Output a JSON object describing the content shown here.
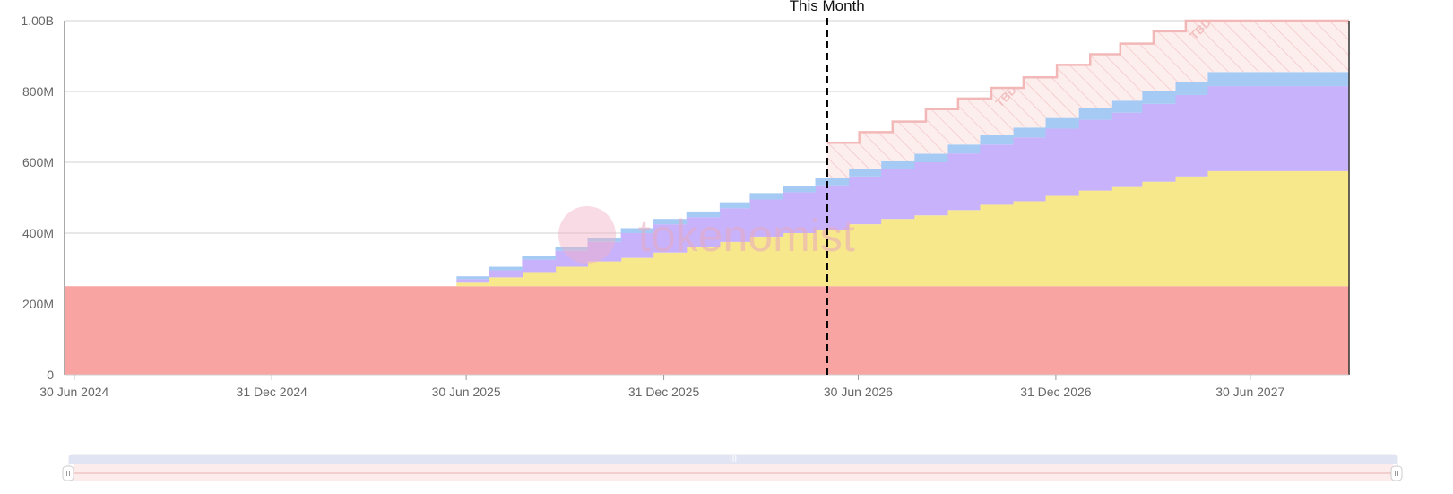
{
  "chart_data": {
    "type": "area",
    "step": true,
    "stacked": true,
    "x_axis": {
      "type": "date",
      "range": [
        "2024-06-21",
        "2027-09-30"
      ],
      "ticks": [
        {
          "date": "2024-06-30",
          "label": "30 Jun 2024"
        },
        {
          "date": "2024-12-31",
          "label": "31 Dec 2024"
        },
        {
          "date": "2025-06-30",
          "label": "30 Jun 2025"
        },
        {
          "date": "2025-12-31",
          "label": "31 Dec 2025"
        },
        {
          "date": "2026-06-30",
          "label": "30 Jun 2026"
        },
        {
          "date": "2026-12-31",
          "label": "31 Dec 2026"
        },
        {
          "date": "2027-06-30",
          "label": "30 Jun 2027"
        }
      ]
    },
    "y_axis": {
      "range": [
        0,
        1000000000
      ],
      "ticks": [
        {
          "value": 0,
          "label": "0"
        },
        {
          "value": 200000000,
          "label": "200M"
        },
        {
          "value": 400000000,
          "label": "400M"
        },
        {
          "value": 600000000,
          "label": "600M"
        },
        {
          "value": 800000000,
          "label": "800M"
        },
        {
          "value": 1000000000,
          "label": "1.00B"
        }
      ],
      "grid": true
    },
    "marker": {
      "date": "2026-06-01",
      "label": "This Month",
      "style": "dashed"
    },
    "series": [
      {
        "color": "#f8a4a3",
        "steps": [
          [
            "2024-06-21",
            250000000
          ]
        ]
      },
      {
        "color": "#f7e98b",
        "steps": [
          [
            "2025-06-21",
            10000000
          ],
          [
            "2025-07-21",
            25000000
          ],
          [
            "2025-08-21",
            40000000
          ],
          [
            "2025-09-21",
            55000000
          ],
          [
            "2025-10-21",
            70000000
          ],
          [
            "2025-11-21",
            80000000
          ],
          [
            "2025-12-21",
            95000000
          ],
          [
            "2026-01-21",
            110000000
          ],
          [
            "2026-02-21",
            125000000
          ],
          [
            "2026-03-21",
            140000000
          ],
          [
            "2026-04-21",
            150000000
          ],
          [
            "2026-05-21",
            160000000
          ],
          [
            "2026-06-21",
            175000000
          ],
          [
            "2026-07-21",
            190000000
          ],
          [
            "2026-08-21",
            200000000
          ],
          [
            "2026-09-21",
            215000000
          ],
          [
            "2026-10-21",
            230000000
          ],
          [
            "2026-11-21",
            240000000
          ],
          [
            "2026-12-21",
            255000000
          ],
          [
            "2027-01-21",
            270000000
          ],
          [
            "2027-02-21",
            280000000
          ],
          [
            "2027-03-21",
            295000000
          ],
          [
            "2027-04-21",
            310000000
          ],
          [
            "2027-05-21",
            325000000
          ]
        ]
      },
      {
        "color": "#c8b2fb",
        "steps": [
          [
            "2025-06-21",
            10000000
          ],
          [
            "2025-07-21",
            20000000
          ],
          [
            "2025-08-21",
            35000000
          ],
          [
            "2025-09-21",
            45000000
          ],
          [
            "2025-10-21",
            55000000
          ],
          [
            "2025-11-21",
            70000000
          ],
          [
            "2025-12-21",
            80000000
          ],
          [
            "2026-01-21",
            85000000
          ],
          [
            "2026-02-21",
            95000000
          ],
          [
            "2026-03-21",
            105000000
          ],
          [
            "2026-04-21",
            115000000
          ],
          [
            "2026-05-21",
            125000000
          ],
          [
            "2026-06-21",
            135000000
          ],
          [
            "2026-07-21",
            140000000
          ],
          [
            "2026-08-21",
            150000000
          ],
          [
            "2026-09-21",
            160000000
          ],
          [
            "2026-10-21",
            170000000
          ],
          [
            "2026-11-21",
            180000000
          ],
          [
            "2026-12-21",
            190000000
          ],
          [
            "2027-01-21",
            200000000
          ],
          [
            "2027-02-21",
            210000000
          ],
          [
            "2027-03-21",
            220000000
          ],
          [
            "2027-04-21",
            230000000
          ],
          [
            "2027-05-21",
            240000000
          ]
        ]
      },
      {
        "color": "#a5cbf4",
        "steps": [
          [
            "2025-06-21",
            8000000
          ],
          [
            "2025-07-21",
            10000000
          ],
          [
            "2025-08-21",
            10000000
          ],
          [
            "2025-09-21",
            12000000
          ],
          [
            "2025-10-21",
            12000000
          ],
          [
            "2025-11-21",
            14000000
          ],
          [
            "2025-12-21",
            15000000
          ],
          [
            "2026-01-21",
            16000000
          ],
          [
            "2026-02-21",
            17000000
          ],
          [
            "2026-03-21",
            18000000
          ],
          [
            "2026-04-21",
            19000000
          ],
          [
            "2026-05-21",
            20000000
          ],
          [
            "2026-06-21",
            22000000
          ],
          [
            "2026-07-21",
            23000000
          ],
          [
            "2026-08-21",
            24000000
          ],
          [
            "2026-09-21",
            25000000
          ],
          [
            "2026-10-21",
            26000000
          ],
          [
            "2026-11-21",
            28000000
          ],
          [
            "2026-12-21",
            30000000
          ],
          [
            "2027-01-21",
            32000000
          ],
          [
            "2027-02-21",
            34000000
          ],
          [
            "2027-03-21",
            36000000
          ],
          [
            "2027-04-21",
            38000000
          ],
          [
            "2027-05-21",
            40000000
          ]
        ]
      }
    ],
    "tbd_region": {
      "color": "#f2b8b8",
      "label": "TBD",
      "label_dates": [
        "2026-11-01",
        "2027-05-01"
      ],
      "steps": [
        [
          "2026-06-01",
          655000000
        ],
        [
          "2026-07-01",
          685000000
        ],
        [
          "2026-08-01",
          715000000
        ],
        [
          "2026-09-01",
          750000000
        ],
        [
          "2026-10-01",
          780000000
        ],
        [
          "2026-11-01",
          810000000
        ],
        [
          "2026-12-01",
          840000000
        ],
        [
          "2027-01-01",
          875000000
        ],
        [
          "2027-02-01",
          905000000
        ],
        [
          "2027-03-01",
          935000000
        ],
        [
          "2027-04-01",
          970000000
        ],
        [
          "2027-05-01",
          1000000000
        ]
      ]
    },
    "watermark": "tokenomist",
    "range_slider": {
      "handle_glyph": "III"
    }
  }
}
